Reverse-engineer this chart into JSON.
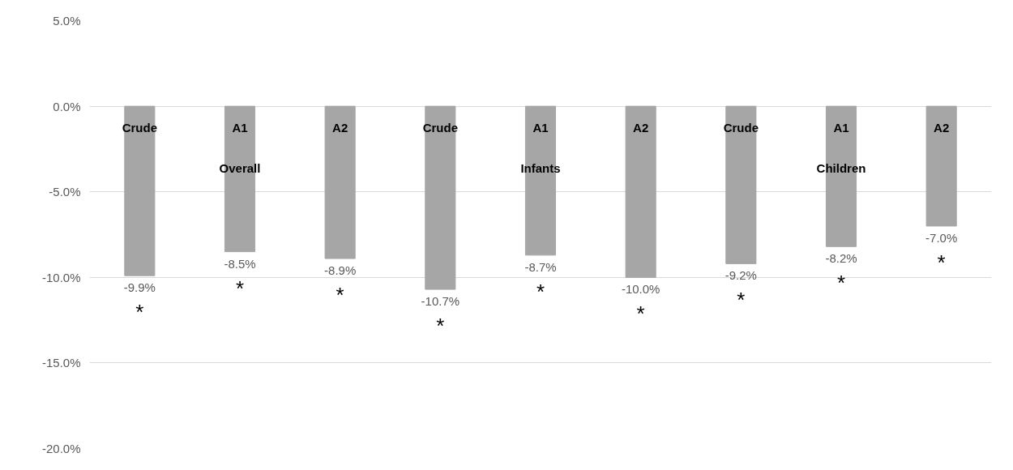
{
  "chart_data": {
    "type": "bar",
    "categories": [
      "Crude",
      "A1",
      "A2",
      "Crude",
      "A1",
      "A2",
      "Crude",
      "A1",
      "A2"
    ],
    "values": [
      -9.9,
      -8.5,
      -8.9,
      -10.7,
      -8.7,
      -10.0,
      -9.2,
      -8.2,
      -7.0
    ],
    "value_labels": [
      "-9.9%",
      "-8.5%",
      "-8.9%",
      "-10.7%",
      "-8.7%",
      "-10.0%",
      "-9.2%",
      "-8.2%",
      "-7.0%"
    ],
    "color": "#a6a6a6",
    "ylim": [
      -20,
      5
    ],
    "yticks": [
      {
        "value": 5,
        "label": "5.0%"
      },
      {
        "value": 0,
        "label": "0.0%"
      },
      {
        "value": -5,
        "label": "-5.0%"
      },
      {
        "value": -10,
        "label": "-10.0%"
      },
      {
        "value": -15,
        "label": "-15.0%"
      },
      {
        "value": -20,
        "label": "-20.0%"
      }
    ],
    "grid": "y",
    "annotations": [
      "Overall",
      "Infants",
      "Children",
      "*",
      "*",
      "*",
      "*",
      "*",
      "*",
      "*",
      "*",
      "*"
    ]
  }
}
